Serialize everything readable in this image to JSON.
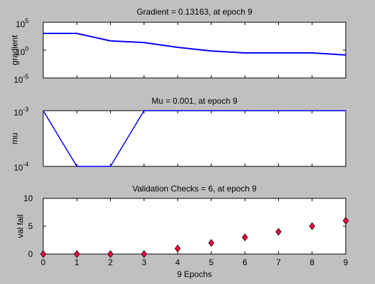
{
  "chart_data": [
    {
      "type": "line",
      "title": "Gradient = 0.13163, at epoch 9",
      "ylabel": "gradient",
      "yscale": "log",
      "ylim": [
        1e-05,
        100000
      ],
      "yticks": [
        {
          "base": "10",
          "exp": "5"
        },
        {
          "base": "10",
          "exp": "0"
        },
        {
          "base": "10",
          "exp": "-5"
        }
      ],
      "x": [
        0,
        1,
        2,
        3,
        4,
        5,
        6,
        7,
        8,
        9
      ],
      "values": [
        1000,
        1000,
        45,
        23,
        3.2,
        0.7,
        0.32,
        0.32,
        0.32,
        0.13163
      ],
      "color": "#0000ff"
    },
    {
      "type": "line",
      "title": "Mu = 0.001, at epoch 9",
      "ylabel": "mu",
      "yscale": "log",
      "ylim": [
        0.0001,
        0.001
      ],
      "yticks": [
        {
          "base": "10",
          "exp": "-3"
        },
        {
          "base": "10",
          "exp": "-4"
        }
      ],
      "x": [
        0,
        1,
        2,
        3,
        4,
        5,
        6,
        7,
        8,
        9
      ],
      "values": [
        0.001,
        0.0001,
        0.0001,
        0.001,
        0.001,
        0.001,
        0.001,
        0.001,
        0.001,
        0.001
      ],
      "color": "#0000ff"
    },
    {
      "type": "scatter",
      "title": "Validation Checks = 6, at epoch 9",
      "ylabel": "val fail",
      "xlabel": "9 Epochs",
      "ylim": [
        0,
        10
      ],
      "yticks": [
        "0",
        "5",
        "10"
      ],
      "xticks": [
        "0",
        "1",
        "2",
        "3",
        "4",
        "5",
        "6",
        "7",
        "8",
        "9"
      ],
      "x": [
        0,
        1,
        2,
        3,
        4,
        5,
        6,
        7,
        8,
        9
      ],
      "values": [
        0,
        0,
        0,
        0,
        1,
        2,
        3,
        4,
        5,
        6
      ],
      "marker_color": "#ff0040"
    }
  ]
}
